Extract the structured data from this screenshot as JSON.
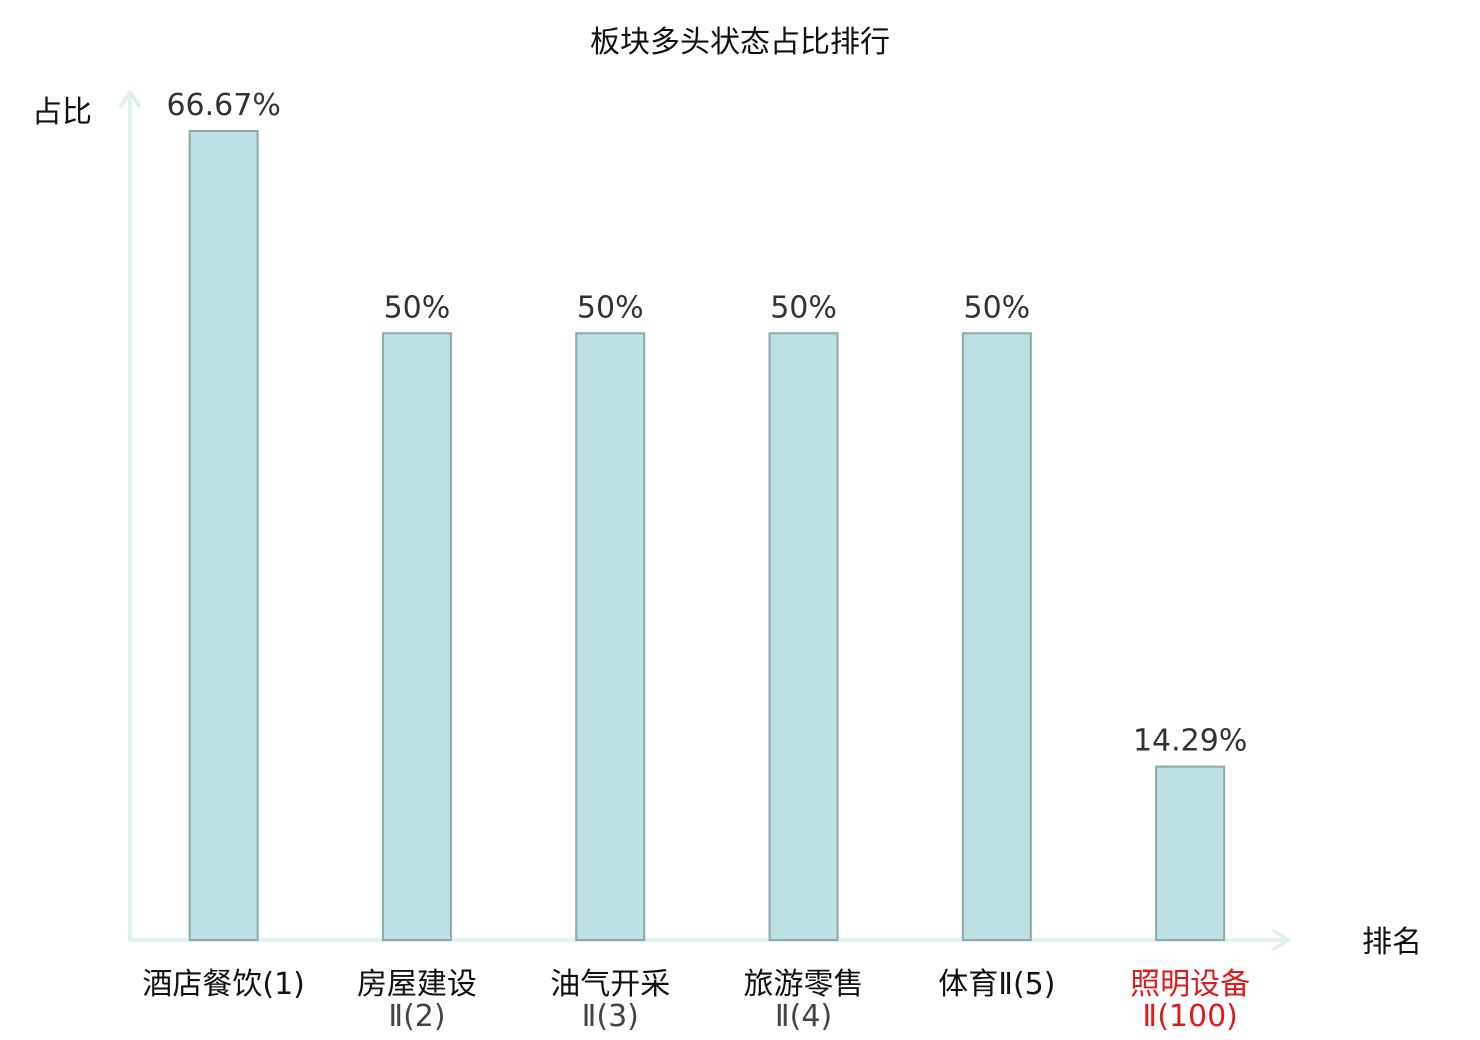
{
  "chart_data": {
    "type": "bar",
    "title": "板块多头状态占比排行",
    "ylabel": "占比",
    "xlabel": "排名",
    "ylim": [
      0,
      70
    ],
    "grid": false,
    "legend": "none",
    "bar_color": "#bde0e3",
    "bar_stroke": "#8aa9ab",
    "axis_color": "#e0f2ef",
    "highlight_color": "#e01b1b",
    "categories": [
      {
        "name": "酒店餐饮(1)",
        "sub": ""
      },
      {
        "name": "房屋建设",
        "sub": "Ⅱ(2)"
      },
      {
        "name": "油气开采",
        "sub": "Ⅱ(3)"
      },
      {
        "name": "旅游零售",
        "sub": "Ⅱ(4)"
      },
      {
        "name": "体育Ⅱ(5)",
        "sub": ""
      },
      {
        "name": "照明设备",
        "sub": "Ⅱ(100)"
      }
    ],
    "values": [
      66.67,
      50,
      50,
      50,
      50,
      14.29
    ],
    "value_labels": [
      "66.67%",
      "50%",
      "50%",
      "50%",
      "50%",
      "14.29%"
    ],
    "highlight_index": 5
  }
}
